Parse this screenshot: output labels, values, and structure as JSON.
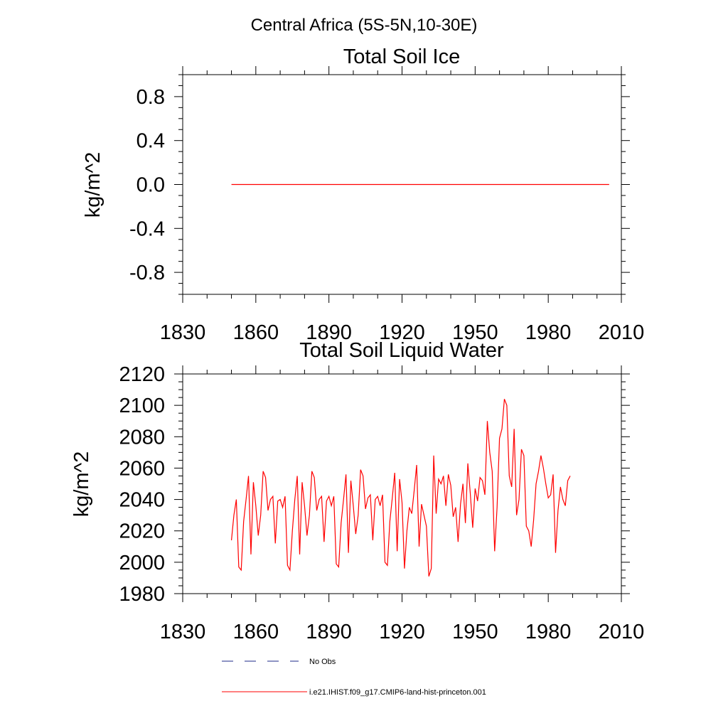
{
  "figure": {
    "suptitle": "Central Africa (5S-5N,10-30E)"
  },
  "colors": {
    "model": "#ff0000",
    "obs": "#1c2a88",
    "axis": "#000000"
  },
  "legend": {
    "placement": "bottom",
    "entries": [
      {
        "label": "No Obs",
        "style": "dashed",
        "color": "#1c2a88"
      },
      {
        "label": "i.e21.IHIST.f09_g17.CMIP6-land-hist-princeton.001",
        "style": "solid",
        "color": "#ff0000"
      }
    ]
  },
  "chart_data": [
    {
      "type": "line",
      "title": "Total Soil Ice",
      "xlabel": "",
      "ylabel": "kg/m^2",
      "xlim": [
        1830,
        2010
      ],
      "ylim": [
        -1.0,
        1.0
      ],
      "xticks": [
        1830,
        1860,
        1890,
        1920,
        1950,
        1980,
        2010
      ],
      "yticks": [
        -0.8,
        -0.4,
        0.0,
        0.4,
        0.8
      ],
      "ytick_labels": [
        "-0.8",
        "-0.4",
        "0.0",
        "0.4",
        "0.8"
      ],
      "grid": false,
      "series": [
        {
          "name": "i.e21.IHIST.f09_g17.CMIP6-land-hist-princeton.001",
          "x": [
            1850,
            2005
          ],
          "values": [
            0.0,
            0.0
          ]
        }
      ]
    },
    {
      "type": "line",
      "title": "Total Soil Liquid Water",
      "xlabel": "",
      "ylabel": "kg/m^2",
      "xlim": [
        1830,
        2010
      ],
      "ylim": [
        1980,
        2120
      ],
      "xticks": [
        1830,
        1860,
        1890,
        1920,
        1950,
        1980,
        2010
      ],
      "yticks": [
        1980,
        2000,
        2020,
        2040,
        2060,
        2080,
        2100,
        2120
      ],
      "ytick_labels": [
        "1980",
        "2000",
        "2020",
        "2040",
        "2060",
        "2080",
        "2100",
        "2120"
      ],
      "grid": false,
      "series": [
        {
          "name": "i.e21.IHIST.f09_g17.CMIP6-land-hist-princeton.001",
          "x_start": 1850,
          "x_step": 1,
          "values": [
            2014,
            2030,
            2040,
            1997,
            1995,
            2026,
            2040,
            2055,
            2005,
            2051,
            2036,
            2017,
            2030,
            2058,
            2054,
            2033,
            2040,
            2042,
            2012,
            2039,
            2040,
            2035,
            2042,
            1998,
            1995,
            2020,
            2040,
            2055,
            2005,
            2051,
            2036,
            2017,
            2030,
            2058,
            2054,
            2033,
            2040,
            2042,
            2013,
            2039,
            2042,
            2036,
            2042,
            1999,
            1997,
            2025,
            2040,
            2056,
            2006,
            2052,
            2036,
            2018,
            2030,
            2059,
            2055,
            2034,
            2041,
            2043,
            2014,
            2040,
            2042,
            2036,
            2043,
            2000,
            1998,
            2026,
            2041,
            2057,
            2007,
            2053,
            2038,
            1996,
            2020,
            2035,
            2031,
            2046,
            2062,
            2010,
            2037,
            2030,
            2023,
            1991,
            1996,
            2068,
            2031,
            2053,
            2050,
            2055,
            2036,
            2056,
            2049,
            2029,
            2035,
            2013,
            2037,
            2050,
            2025,
            2063,
            2044,
            2022,
            2047,
            2039,
            2054,
            2052,
            2043,
            2090,
            2070,
            2058,
            2007,
            2035,
            2079,
            2085,
            2104,
            2100,
            2055,
            2048,
            2085,
            2030,
            2040,
            2072,
            2068,
            2023,
            2020,
            2010,
            2027,
            2050,
            2058,
            2068,
            2060,
            2050,
            2041,
            2043,
            2056,
            2006,
            2033,
            2048,
            2040,
            2036,
            2052,
            2055
          ]
        }
      ]
    }
  ]
}
